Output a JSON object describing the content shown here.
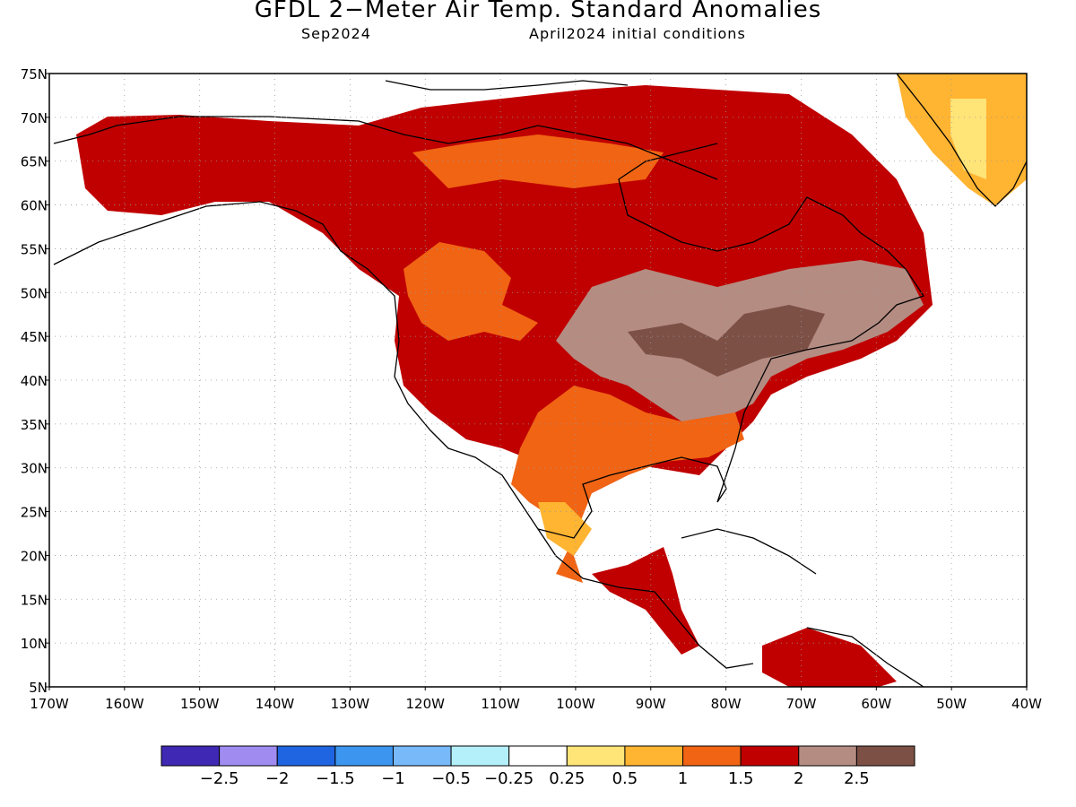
{
  "title": "GFDL 2−Meter Air Temp. Standard Anomalies",
  "subtitle_left": "Sep2024",
  "subtitle_right": "April2024 initial conditions",
  "lat_labels": [
    "75N",
    "70N",
    "65N",
    "60N",
    "55N",
    "50N",
    "45N",
    "40N",
    "35N",
    "30N",
    "25N",
    "20N",
    "15N",
    "10N",
    "5N"
  ],
  "lon_labels": [
    "170W",
    "160W",
    "150W",
    "140W",
    "130W",
    "120W",
    "110W",
    "100W",
    "90W",
    "80W",
    "70W",
    "60W",
    "50W",
    "40W"
  ],
  "lon_range": [
    -170,
    -40
  ],
  "lat_range": [
    5,
    75
  ],
  "colorbar": {
    "colors": [
      "#3f28b4",
      "#a08cf0",
      "#1f64e0",
      "#3c96f0",
      "#78b9fa",
      "#b4f0fa",
      "#ffffff",
      "#ffe478",
      "#ffb432",
      "#f06414",
      "#c00000",
      "#b48c82",
      "#7d5046"
    ],
    "labels": [
      "−2.5",
      "−2",
      "−1.5",
      "−1",
      "−0.5",
      "−0.25",
      "0.25",
      "0.5",
      "1",
      "1.5",
      "2",
      "2.5"
    ]
  }
}
